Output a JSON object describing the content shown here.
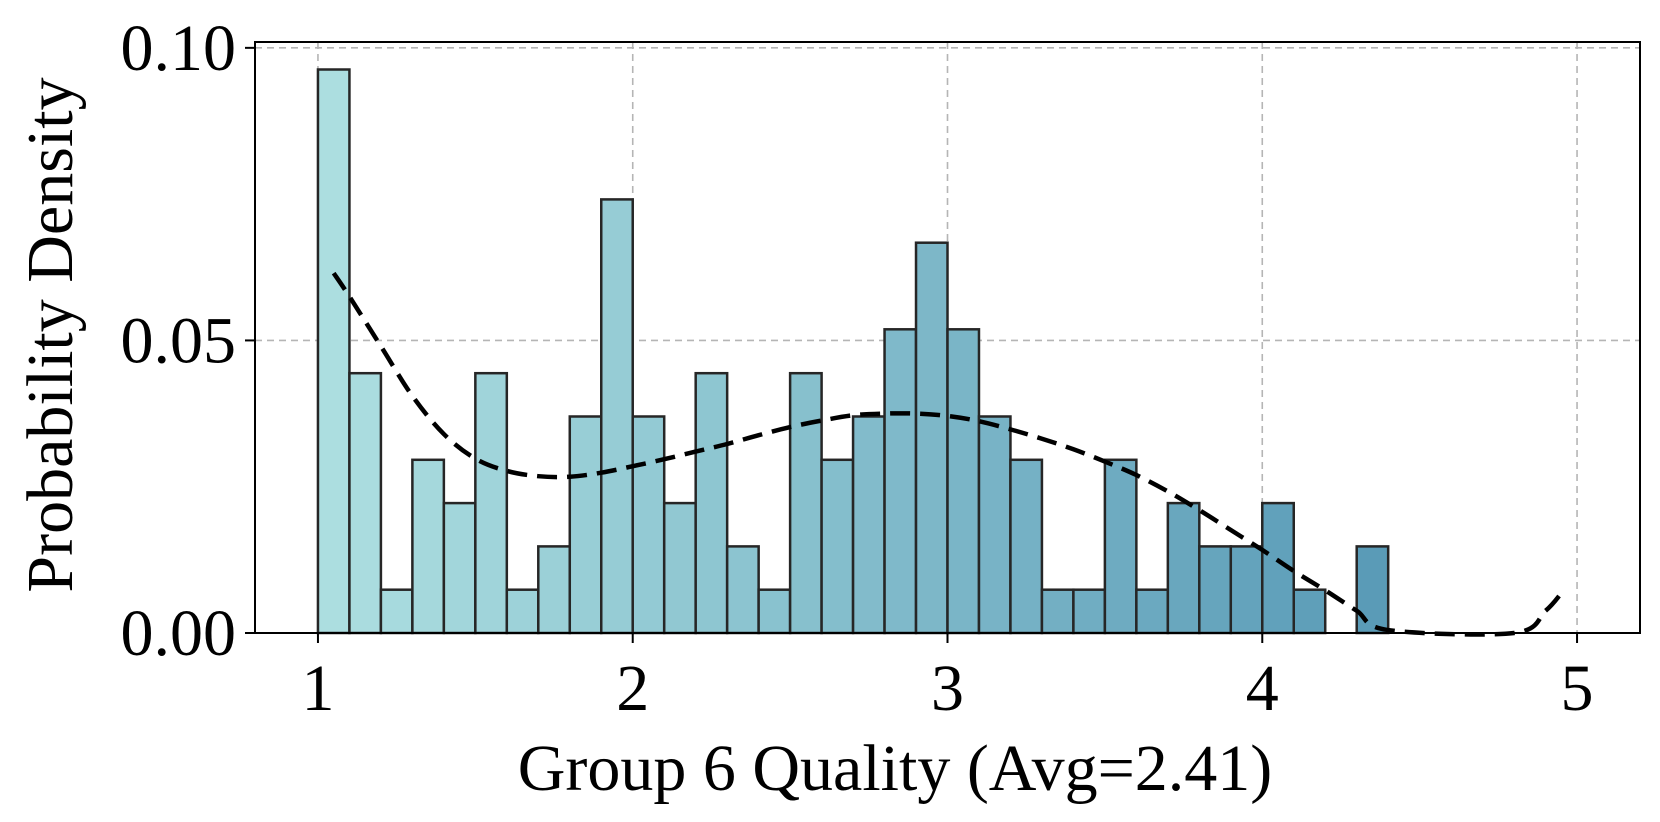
{
  "chart_data": {
    "type": "histogram",
    "xlabel": "Group 6 Quality (Avg=2.41)",
    "ylabel": "Probability Density",
    "xlim": [
      0.8,
      5.2
    ],
    "ylim": [
      0,
      0.101
    ],
    "xticks": [
      1,
      2,
      3,
      4,
      5
    ],
    "xtick_labels": [
      "1",
      "2",
      "3",
      "4",
      "5"
    ],
    "yticks": [
      0,
      0.05,
      0.1
    ],
    "ytick_labels": [
      "0.00",
      "0.05",
      "0.10"
    ],
    "grid": true,
    "colors": {
      "bar_start": "#acdee0",
      "bar_end": "#5a9bb7",
      "kde": "#000000",
      "grid": "#b5b5b5"
    },
    "bins": [
      {
        "x0": 1.0,
        "x1": 1.1,
        "density": 0.0963
      },
      {
        "x0": 1.1,
        "x1": 1.2,
        "density": 0.0444
      },
      {
        "x0": 1.2,
        "x1": 1.3,
        "density": 0.0074
      },
      {
        "x0": 1.3,
        "x1": 1.4,
        "density": 0.0296
      },
      {
        "x0": 1.4,
        "x1": 1.5,
        "density": 0.0222
      },
      {
        "x0": 1.5,
        "x1": 1.6,
        "density": 0.0444
      },
      {
        "x0": 1.6,
        "x1": 1.7,
        "density": 0.0074
      },
      {
        "x0": 1.7,
        "x1": 1.8,
        "density": 0.0148
      },
      {
        "x0": 1.8,
        "x1": 1.9,
        "density": 0.037
      },
      {
        "x0": 1.9,
        "x1": 2.0,
        "density": 0.0741
      },
      {
        "x0": 2.0,
        "x1": 2.1,
        "density": 0.037
      },
      {
        "x0": 2.1,
        "x1": 2.2,
        "density": 0.0222
      },
      {
        "x0": 2.2,
        "x1": 2.3,
        "density": 0.0444
      },
      {
        "x0": 2.3,
        "x1": 2.4,
        "density": 0.0148
      },
      {
        "x0": 2.4,
        "x1": 2.5,
        "density": 0.0074
      },
      {
        "x0": 2.5,
        "x1": 2.6,
        "density": 0.0444
      },
      {
        "x0": 2.6,
        "x1": 2.7,
        "density": 0.0296
      },
      {
        "x0": 2.7,
        "x1": 2.8,
        "density": 0.037
      },
      {
        "x0": 2.8,
        "x1": 2.9,
        "density": 0.0519
      },
      {
        "x0": 2.9,
        "x1": 3.0,
        "density": 0.0667
      },
      {
        "x0": 3.0,
        "x1": 3.1,
        "density": 0.0519
      },
      {
        "x0": 3.1,
        "x1": 3.2,
        "density": 0.037
      },
      {
        "x0": 3.2,
        "x1": 3.3,
        "density": 0.0296
      },
      {
        "x0": 3.3,
        "x1": 3.4,
        "density": 0.0074
      },
      {
        "x0": 3.4,
        "x1": 3.5,
        "density": 0.0074
      },
      {
        "x0": 3.5,
        "x1": 3.6,
        "density": 0.0296
      },
      {
        "x0": 3.6,
        "x1": 3.7,
        "density": 0.0074
      },
      {
        "x0": 3.7,
        "x1": 3.8,
        "density": 0.0222
      },
      {
        "x0": 3.8,
        "x1": 3.9,
        "density": 0.0148
      },
      {
        "x0": 3.9,
        "x1": 4.0,
        "density": 0.0148
      },
      {
        "x0": 4.0,
        "x1": 4.1,
        "density": 0.0222
      },
      {
        "x0": 4.1,
        "x1": 4.2,
        "density": 0.0074
      },
      {
        "x0": 4.2,
        "x1": 4.3,
        "density": 0.0
      },
      {
        "x0": 4.3,
        "x1": 4.4,
        "density": 0.0148
      }
    ],
    "kde": {
      "x": [
        1.05,
        1.1,
        1.2,
        1.3,
        1.4,
        1.5,
        1.6,
        1.7,
        1.8,
        1.9,
        2.0,
        2.1,
        2.2,
        2.3,
        2.4,
        2.5,
        2.6,
        2.7,
        2.8,
        2.9,
        3.0,
        3.1,
        3.2,
        3.3,
        3.4,
        3.5,
        3.6,
        3.7,
        3.8,
        3.9,
        4.0,
        4.1,
        4.2,
        4.3,
        4.4,
        4.8,
        4.9,
        4.95
      ],
      "y": [
        0.0615,
        0.0575,
        0.049,
        0.0405,
        0.034,
        0.0298,
        0.0277,
        0.0268,
        0.0267,
        0.0274,
        0.0285,
        0.0297,
        0.031,
        0.0323,
        0.0338,
        0.0352,
        0.0363,
        0.0372,
        0.0375,
        0.0375,
        0.0371,
        0.0362,
        0.0348,
        0.0332,
        0.0314,
        0.0293,
        0.027,
        0.0242,
        0.021,
        0.0176,
        0.0142,
        0.0106,
        0.0073,
        0.0038,
        0.0005,
        0.0,
        0.0038,
        0.0068
      ]
    }
  }
}
